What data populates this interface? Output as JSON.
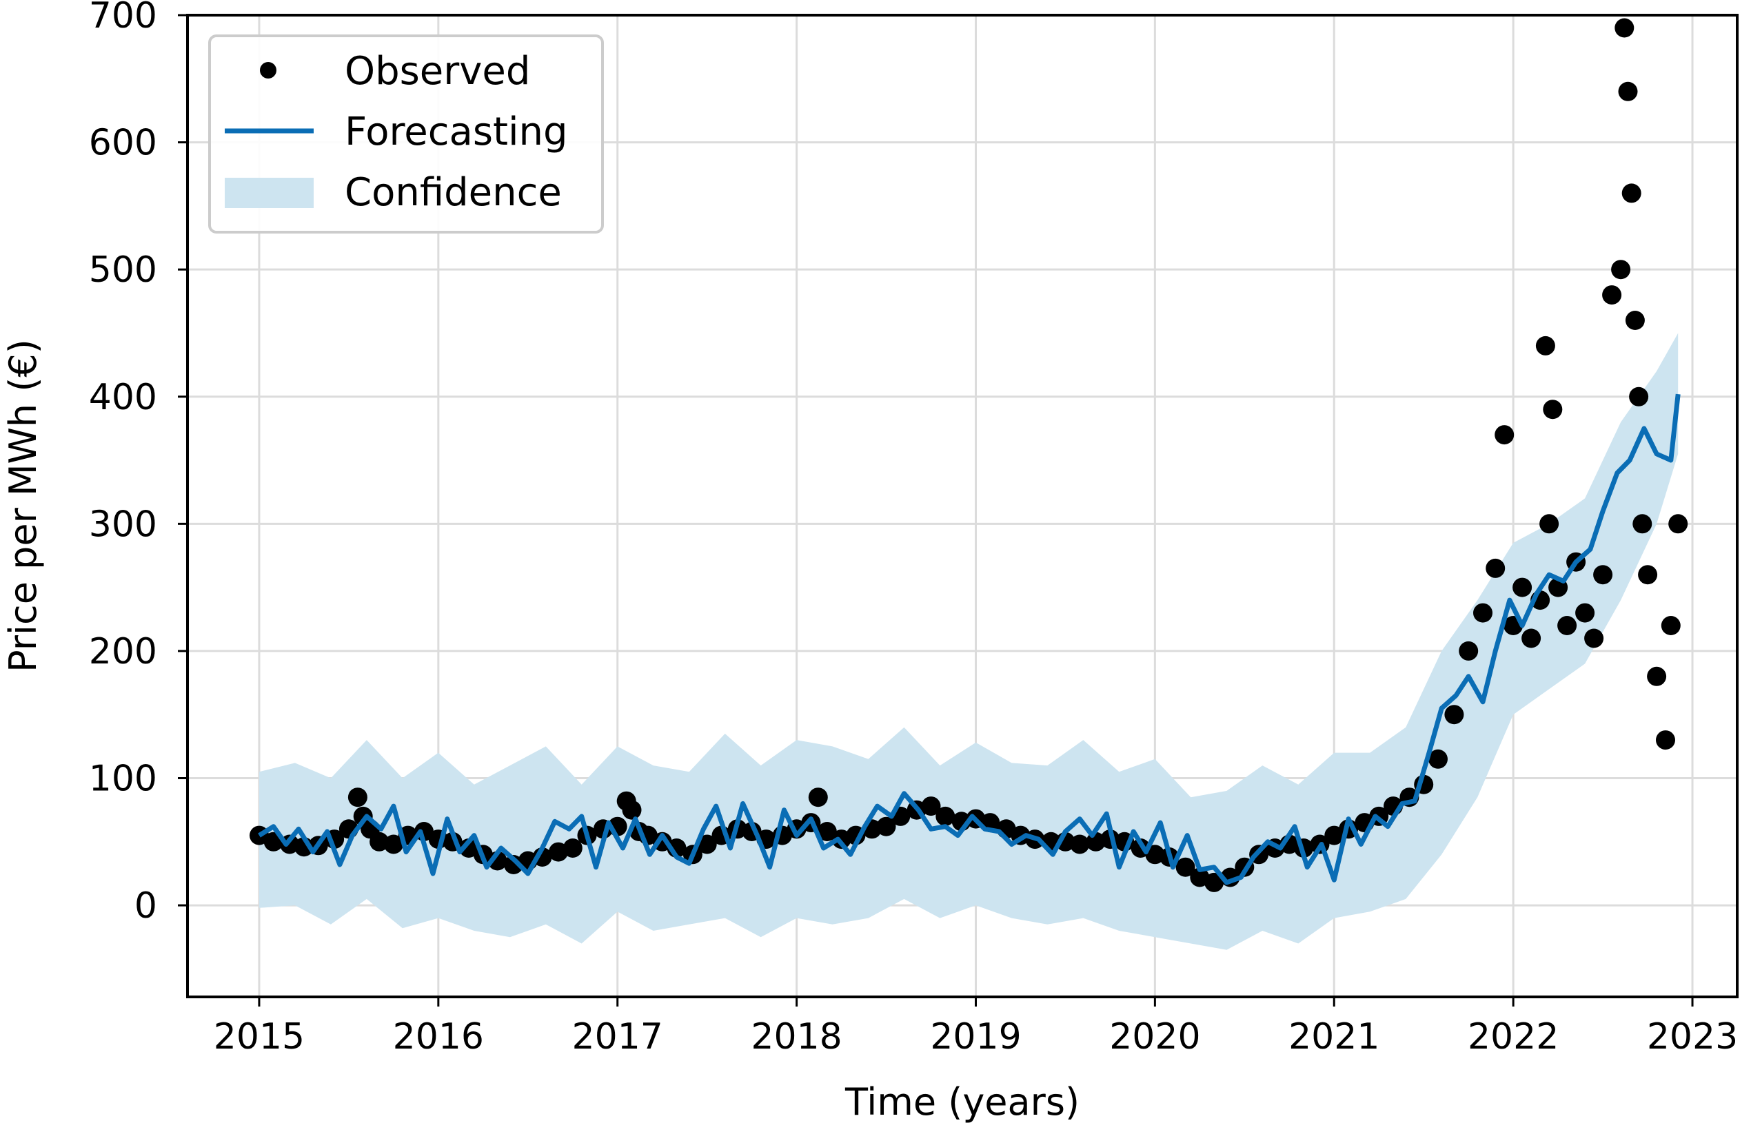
{
  "chart_data": {
    "type": "line",
    "title": "",
    "xlabel": "Time (years)",
    "ylabel": "Price per MWh (€)",
    "xlim": [
      2014.6,
      2023.25
    ],
    "ylim": [
      -72,
      700
    ],
    "x_ticks": [
      2015,
      2016,
      2017,
      2018,
      2019,
      2020,
      2021,
      2022,
      2023
    ],
    "x_tick_labels": [
      "2015",
      "2016",
      "2017",
      "2018",
      "2019",
      "2020",
      "2021",
      "2022",
      "2023"
    ],
    "y_ticks": [
      0,
      100,
      200,
      300,
      400,
      500,
      600,
      700
    ],
    "y_tick_labels": [
      "0",
      "100",
      "200",
      "300",
      "400",
      "500",
      "600",
      "700"
    ],
    "grid": true,
    "legend_position": "top-left",
    "legend": [
      "Observed",
      "Forecasting",
      "Confidence"
    ],
    "colors": {
      "observed": "#000000",
      "forecast": "#0a6db5",
      "confidence": "#cde4f0",
      "grid": "#dcdcdc"
    },
    "series": [
      {
        "name": "Observed",
        "style": "markers",
        "x": [
          2015.0,
          2015.08,
          2015.17,
          2015.25,
          2015.33,
          2015.42,
          2015.5,
          2015.55,
          2015.58,
          2015.62,
          2015.67,
          2015.75,
          2015.83,
          2015.92,
          2016.0,
          2016.08,
          2016.17,
          2016.25,
          2016.33,
          2016.42,
          2016.5,
          2016.58,
          2016.67,
          2016.75,
          2016.83,
          2016.92,
          2017.0,
          2017.05,
          2017.08,
          2017.12,
          2017.17,
          2017.25,
          2017.33,
          2017.42,
          2017.5,
          2017.58,
          2017.67,
          2017.75,
          2017.83,
          2017.92,
          2018.0,
          2018.08,
          2018.12,
          2018.17,
          2018.25,
          2018.33,
          2018.42,
          2018.5,
          2018.58,
          2018.67,
          2018.75,
          2018.83,
          2018.92,
          2019.0,
          2019.08,
          2019.17,
          2019.25,
          2019.33,
          2019.42,
          2019.5,
          2019.58,
          2019.67,
          2019.75,
          2019.83,
          2019.92,
          2020.0,
          2020.08,
          2020.17,
          2020.25,
          2020.33,
          2020.42,
          2020.5,
          2020.58,
          2020.67,
          2020.75,
          2020.83,
          2020.92,
          2021.0,
          2021.08,
          2021.17,
          2021.25,
          2021.33,
          2021.42,
          2021.5,
          2021.58,
          2021.67,
          2021.75,
          2021.83,
          2021.9,
          2021.95,
          2022.0,
          2022.05,
          2022.1,
          2022.15,
          2022.18,
          2022.2,
          2022.22,
          2022.25,
          2022.3,
          2022.35,
          2022.4,
          2022.45,
          2022.5,
          2022.55,
          2022.6,
          2022.62,
          2022.64,
          2022.66,
          2022.68,
          2022.7,
          2022.72,
          2022.75,
          2022.8,
          2022.85,
          2022.88,
          2022.92
        ],
        "values": [
          55,
          50,
          48,
          46,
          47,
          52,
          60,
          85,
          70,
          60,
          50,
          48,
          55,
          58,
          52,
          50,
          45,
          40,
          35,
          32,
          35,
          38,
          42,
          45,
          55,
          60,
          62,
          82,
          75,
          58,
          55,
          50,
          45,
          40,
          48,
          55,
          60,
          58,
          52,
          55,
          60,
          65,
          85,
          58,
          52,
          55,
          60,
          62,
          70,
          75,
          78,
          70,
          66,
          68,
          65,
          60,
          55,
          52,
          50,
          50,
          48,
          50,
          52,
          50,
          45,
          40,
          38,
          30,
          22,
          18,
          22,
          30,
          40,
          45,
          48,
          45,
          48,
          55,
          60,
          65,
          70,
          78,
          85,
          95,
          115,
          150,
          200,
          230,
          265,
          370,
          220,
          250,
          210,
          240,
          440,
          300,
          390,
          250,
          220,
          270,
          230,
          210,
          260,
          480,
          500,
          690,
          640,
          560,
          460,
          400,
          300,
          260,
          180,
          130,
          220,
          300
        ]
      },
      {
        "name": "Forecasting",
        "style": "line",
        "x": [
          2015.0,
          2015.08,
          2015.15,
          2015.22,
          2015.3,
          2015.38,
          2015.45,
          2015.52,
          2015.6,
          2015.68,
          2015.75,
          2015.82,
          2015.9,
          2015.97,
          2016.05,
          2016.12,
          2016.2,
          2016.27,
          2016.35,
          2016.43,
          2016.5,
          2016.58,
          2016.65,
          2016.73,
          2016.8,
          2016.88,
          2016.95,
          2017.03,
          2017.1,
          2017.18,
          2017.25,
          2017.33,
          2017.4,
          2017.48,
          2017.55,
          2017.63,
          2017.7,
          2017.78,
          2017.85,
          2017.93,
          2018.0,
          2018.08,
          2018.15,
          2018.23,
          2018.3,
          2018.38,
          2018.45,
          2018.53,
          2018.6,
          2018.68,
          2018.75,
          2018.83,
          2018.9,
          2018.98,
          2019.05,
          2019.13,
          2019.2,
          2019.28,
          2019.35,
          2019.43,
          2019.5,
          2019.58,
          2019.65,
          2019.73,
          2019.8,
          2019.88,
          2019.95,
          2020.03,
          2020.1,
          2020.18,
          2020.25,
          2020.33,
          2020.4,
          2020.48,
          2020.55,
          2020.63,
          2020.7,
          2020.78,
          2020.85,
          2020.93,
          2021.0,
          2021.08,
          2021.15,
          2021.23,
          2021.3,
          2021.38,
          2021.45,
          2021.53,
          2021.6,
          2021.68,
          2021.75,
          2021.83,
          2021.9,
          2021.98,
          2022.05,
          2022.13,
          2022.2,
          2022.28,
          2022.35,
          2022.43,
          2022.5,
          2022.58,
          2022.65,
          2022.73,
          2022.8,
          2022.88,
          2022.92
        ],
        "values": [
          55,
          62,
          48,
          60,
          42,
          58,
          32,
          55,
          70,
          60,
          78,
          42,
          58,
          25,
          68,
          42,
          55,
          30,
          45,
          35,
          25,
          45,
          66,
          60,
          70,
          30,
          65,
          45,
          68,
          40,
          55,
          38,
          33,
          60,
          78,
          45,
          80,
          55,
          30,
          75,
          55,
          68,
          45,
          52,
          40,
          62,
          78,
          70,
          88,
          75,
          60,
          62,
          55,
          70,
          60,
          58,
          48,
          55,
          52,
          40,
          58,
          68,
          55,
          72,
          30,
          58,
          42,
          65,
          30,
          55,
          28,
          30,
          18,
          22,
          38,
          50,
          45,
          62,
          30,
          48,
          20,
          68,
          48,
          70,
          62,
          80,
          82,
          120,
          155,
          165,
          180,
          160,
          200,
          240,
          220,
          245,
          260,
          255,
          270,
          280,
          310,
          340,
          350,
          375,
          355,
          350,
          402
        ]
      },
      {
        "name": "Confidence",
        "style": "band",
        "x": [
          2015.0,
          2015.2,
          2015.4,
          2015.6,
          2015.8,
          2016.0,
          2016.2,
          2016.4,
          2016.6,
          2016.8,
          2017.0,
          2017.2,
          2017.4,
          2017.6,
          2017.8,
          2018.0,
          2018.2,
          2018.4,
          2018.6,
          2018.8,
          2019.0,
          2019.2,
          2019.4,
          2019.6,
          2019.8,
          2020.0,
          2020.2,
          2020.4,
          2020.6,
          2020.8,
          2021.0,
          2021.2,
          2021.4,
          2021.6,
          2021.8,
          2022.0,
          2022.2,
          2022.4,
          2022.6,
          2022.8,
          2022.92
        ],
        "lower": [
          -2,
          0,
          -15,
          5,
          -18,
          -10,
          -20,
          -25,
          -15,
          -30,
          -5,
          -20,
          -15,
          -10,
          -25,
          -10,
          -15,
          -10,
          5,
          -10,
          0,
          -10,
          -15,
          -10,
          -20,
          -25,
          -30,
          -35,
          -20,
          -30,
          -10,
          -5,
          5,
          40,
          85,
          150,
          170,
          190,
          240,
          300,
          355
        ],
        "upper": [
          105,
          112,
          100,
          130,
          100,
          120,
          95,
          110,
          125,
          95,
          125,
          110,
          105,
          135,
          110,
          130,
          125,
          115,
          140,
          110,
          128,
          112,
          110,
          130,
          105,
          115,
          85,
          90,
          110,
          95,
          120,
          120,
          140,
          200,
          240,
          285,
          300,
          320,
          380,
          420,
          450
        ]
      }
    ]
  }
}
